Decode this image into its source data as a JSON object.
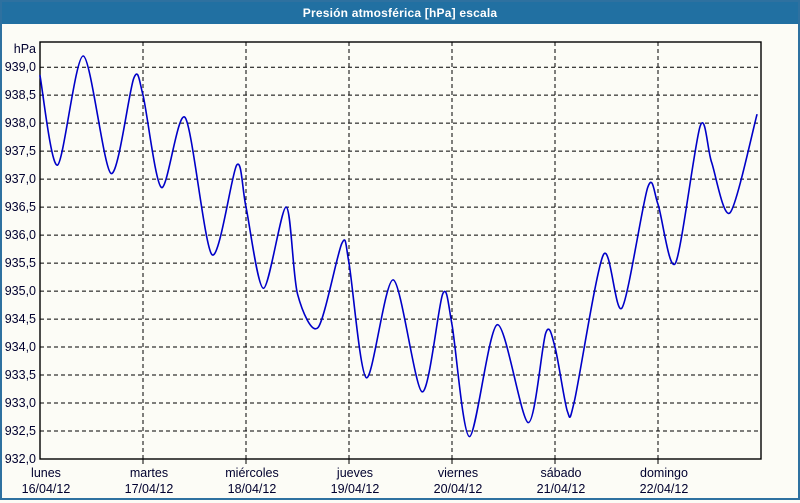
{
  "window": {
    "title": "Presión atmosférica [hPa] escala"
  },
  "colors": {
    "titlebar_bg": "#2170A2",
    "frame_border": "#2E71A0",
    "title_text": "#FFFFFF",
    "plot_border": "#000000",
    "grid": "#000000",
    "axis_text": "#00002E",
    "line": "#0000C8",
    "background": "#FCFCF6"
  },
  "chart": {
    "unit_label": "hPa",
    "y_axis": {
      "tick_labels": [
        "939,0",
        "938,5",
        "938,0",
        "937,5",
        "937,0",
        "936,5",
        "936,0",
        "935,5",
        "935,0",
        "934,5",
        "934,0",
        "933,5",
        "933,0",
        "932,5",
        "932,0"
      ],
      "tick_values": [
        939.0,
        938.5,
        938.0,
        937.5,
        937.0,
        936.5,
        936.0,
        935.5,
        935.0,
        934.5,
        934.0,
        933.5,
        933.0,
        932.5,
        932.0
      ]
    },
    "x_axis": {
      "days": [
        {
          "name": "lunes",
          "date": "16/04/12"
        },
        {
          "name": "martes",
          "date": "17/04/12"
        },
        {
          "name": "miércoles",
          "date": "18/04/12"
        },
        {
          "name": "jueves",
          "date": "19/04/12"
        },
        {
          "name": "viernes",
          "date": "20/04/12"
        },
        {
          "name": "sábado",
          "date": "21/04/12"
        },
        {
          "name": "domingo",
          "date": "22/04/12"
        }
      ]
    }
  },
  "chart_data": {
    "type": "line",
    "title": "Presión atmosférica [hPa] escala",
    "xlabel": "",
    "ylabel": "hPa",
    "ylim": [
      932.0,
      939.45
    ],
    "xlim_days": [
      0,
      7
    ],
    "grid": "dashed; horizontal every 0.5 hPa, vertical per day",
    "legend": "none",
    "x_tick_labels": [
      "lunes 16/04/12",
      "martes 17/04/12",
      "miércoles 18/04/12",
      "jueves 19/04/12",
      "viernes 20/04/12",
      "sábado 21/04/12",
      "domingo 22/04/12"
    ],
    "series_name": "Presión atmosférica",
    "x_days_from_start": [
      0.0,
      0.17,
      0.42,
      0.69,
      0.91,
      1.0,
      1.18,
      1.41,
      1.67,
      1.91,
      2.0,
      2.17,
      2.39,
      2.5,
      2.7,
      2.93,
      3.0,
      3.17,
      3.43,
      3.71,
      3.91,
      4.0,
      4.17,
      4.44,
      4.74,
      4.91,
      5.0,
      5.12,
      5.19,
      5.47,
      5.65,
      5.9,
      6.0,
      6.17,
      6.41,
      6.52,
      6.7,
      6.96
    ],
    "pressure_hpa": [
      938.85,
      937.25,
      939.2,
      937.1,
      938.8,
      938.5,
      936.85,
      938.1,
      935.65,
      937.25,
      936.5,
      935.05,
      936.5,
      934.95,
      934.35,
      935.85,
      935.5,
      933.45,
      935.2,
      933.2,
      934.95,
      934.4,
      932.4,
      934.4,
      932.65,
      934.25,
      934.0,
      932.85,
      933.05,
      935.65,
      934.7,
      936.85,
      936.55,
      935.5,
      937.95,
      937.3,
      936.4,
      938.15
    ]
  }
}
